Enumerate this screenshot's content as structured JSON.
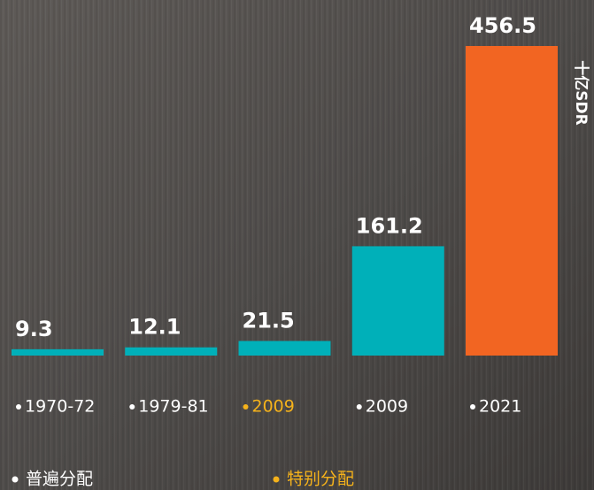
{
  "chart_data": {
    "type": "bar",
    "y_label": "十亿SDR",
    "categories": [
      "1970-72",
      "1979-81",
      "2009",
      "2009",
      "2021"
    ],
    "values": [
      9.3,
      12.1,
      21.5,
      161.2,
      456.5
    ],
    "bar_colors": [
      "#00b0b9",
      "#00b0b9",
      "#00b0b9",
      "#00b0b9",
      "#f26522"
    ],
    "label_colors": [
      "#ffffff",
      "#ffffff",
      "#f5b21b",
      "#ffffff",
      "#ffffff"
    ],
    "legend": [
      {
        "name": "普遍分配",
        "color": "#ffffff"
      },
      {
        "name": "特别分配",
        "color": "#f5b21b"
      }
    ]
  }
}
